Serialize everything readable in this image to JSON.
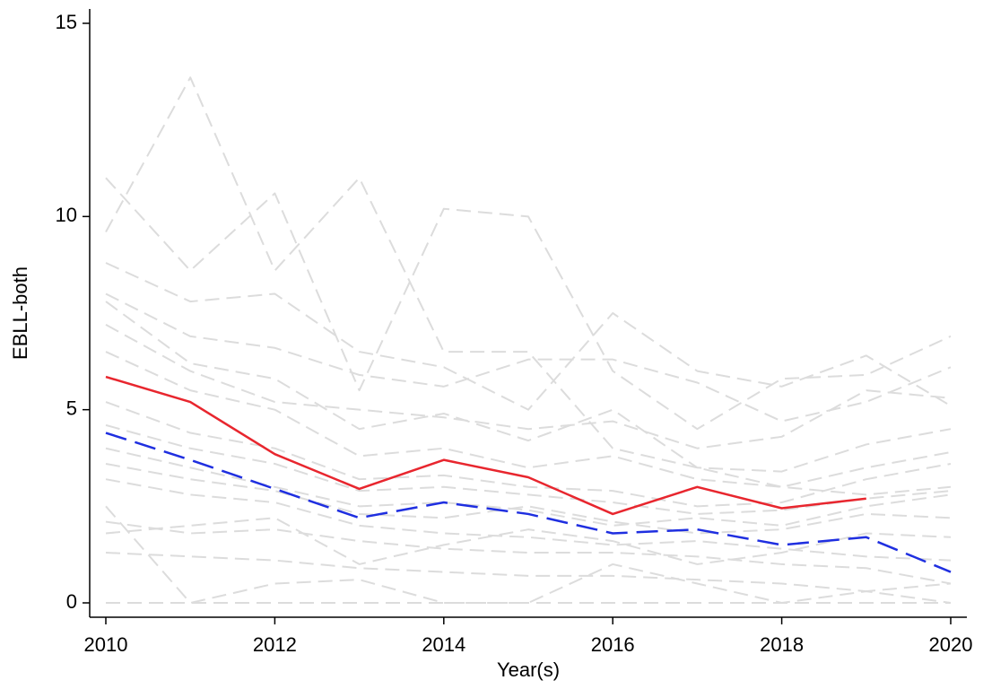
{
  "chart_data": {
    "type": "line",
    "x_label": "Year(s)",
    "y_label": "EBLL-both",
    "x": [
      2010,
      2011,
      2012,
      2013,
      2014,
      2015,
      2016,
      2017,
      2018,
      2019,
      2020
    ],
    "xlim": [
      2010,
      2020
    ],
    "xticks": [
      2010,
      2012,
      2014,
      2016,
      2018,
      2020
    ],
    "ylim": [
      0,
      15
    ],
    "yticks": [
      0,
      5,
      10,
      15
    ],
    "grid": false,
    "series": [
      {
        "color": "#dcdcdc",
        "dashed": true,
        "values": [
          9.6,
          13.6,
          8.6,
          11.0,
          6.5,
          6.5,
          4.0,
          3.5,
          3.0,
          2.8,
          3.0
        ]
      },
      {
        "color": "#dcdcdc",
        "dashed": true,
        "values": [
          11.0,
          8.6,
          10.6,
          5.5,
          10.2,
          10.0,
          6.0,
          4.5,
          5.8,
          5.9,
          6.9
        ]
      },
      {
        "color": "#dcdcdc",
        "dashed": true,
        "values": [
          8.8,
          7.8,
          8.0,
          6.5,
          6.1,
          5.0,
          7.5,
          6.0,
          5.6,
          6.4,
          5.1
        ]
      },
      {
        "color": "#dcdcdc",
        "dashed": true,
        "values": [
          8.0,
          6.9,
          6.6,
          5.9,
          5.6,
          6.3,
          6.3,
          5.7,
          4.7,
          5.2,
          6.1
        ]
      },
      {
        "color": "#dcdcdc",
        "dashed": true,
        "values": [
          7.8,
          6.2,
          5.8,
          4.5,
          4.9,
          4.2,
          5.0,
          3.5,
          3.4,
          4.1,
          4.5
        ]
      },
      {
        "color": "#dcdcdc",
        "dashed": true,
        "values": [
          7.2,
          6.0,
          5.2,
          5.0,
          4.8,
          4.5,
          4.7,
          4.0,
          4.3,
          5.5,
          5.3
        ]
      },
      {
        "color": "#dcdcdc",
        "dashed": true,
        "values": [
          6.5,
          5.5,
          5.0,
          3.8,
          4.0,
          3.5,
          3.8,
          3.2,
          3.0,
          3.5,
          3.9
        ]
      },
      {
        "color": "#dcdcdc",
        "dashed": true,
        "values": [
          5.2,
          4.4,
          4.0,
          3.2,
          3.3,
          3.0,
          2.9,
          2.5,
          2.6,
          3.2,
          3.6
        ]
      },
      {
        "color": "#dcdcdc",
        "dashed": true,
        "values": [
          4.6,
          4.0,
          3.6,
          2.9,
          3.0,
          2.8,
          2.6,
          2.3,
          2.4,
          2.7,
          2.9
        ]
      },
      {
        "color": "#dcdcdc",
        "dashed": true,
        "values": [
          4.0,
          3.5,
          3.0,
          2.5,
          2.6,
          2.4,
          2.0,
          2.2,
          2.0,
          2.5,
          2.8
        ]
      },
      {
        "color": "#dcdcdc",
        "dashed": true,
        "values": [
          3.6,
          3.2,
          2.9,
          2.3,
          2.2,
          2.5,
          2.1,
          1.8,
          1.9,
          2.3,
          2.2
        ]
      },
      {
        "color": "#dcdcdc",
        "dashed": true,
        "values": [
          3.2,
          2.8,
          2.6,
          2.0,
          1.8,
          1.7,
          1.5,
          1.6,
          1.4,
          1.2,
          1.1
        ]
      },
      {
        "color": "#dcdcdc",
        "dashed": true,
        "values": [
          2.5,
          0.0,
          0.5,
          0.6,
          0.0,
          0.0,
          1.0,
          0.5,
          0.0,
          0.3,
          0.5
        ]
      },
      {
        "color": "#dcdcdc",
        "dashed": true,
        "values": [
          2.1,
          1.8,
          1.9,
          1.6,
          1.4,
          1.3,
          1.3,
          1.2,
          1.0,
          0.9,
          0.5
        ]
      },
      {
        "color": "#dcdcdc",
        "dashed": true,
        "values": [
          1.8,
          2.0,
          2.2,
          1.0,
          1.5,
          1.9,
          1.6,
          1.0,
          1.3,
          1.8,
          1.7
        ]
      },
      {
        "color": "#dcdcdc",
        "dashed": true,
        "values": [
          1.3,
          1.2,
          1.1,
          0.9,
          0.8,
          0.7,
          0.7,
          0.6,
          0.5,
          0.3,
          0.0
        ]
      },
      {
        "color": "#dcdcdc",
        "dashed": true,
        "values": [
          0.0,
          0.0,
          0.0,
          0.0,
          0.0,
          0.0,
          0.0,
          0.0,
          0.0,
          0.0,
          0.0
        ]
      },
      {
        "color": "#1f2fe0",
        "dashed": true,
        "values": [
          4.4,
          3.7,
          2.95,
          2.2,
          2.6,
          2.3,
          1.8,
          1.9,
          1.5,
          1.7,
          0.8
        ]
      },
      {
        "color": "#e8262e",
        "dashed": false,
        "values": [
          5.85,
          5.2,
          3.85,
          2.95,
          3.7,
          3.25,
          2.3,
          3.0,
          2.45,
          2.7,
          null
        ]
      }
    ]
  }
}
